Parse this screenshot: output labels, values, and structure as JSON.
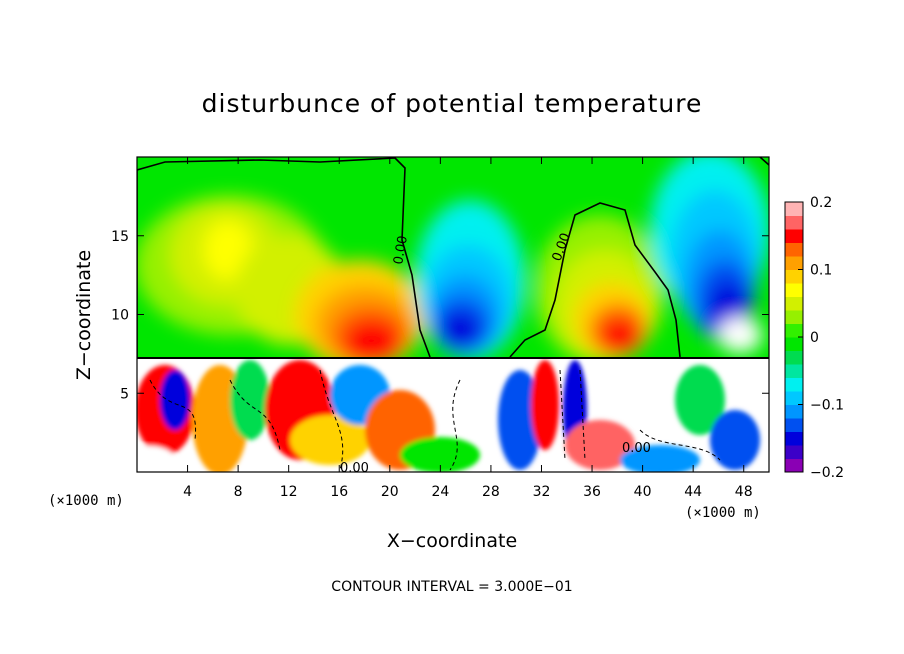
{
  "chart_data": {
    "type": "heatmap",
    "title": "disturbunce of potential temperature",
    "xlabel": "X−coordinate",
    "ylabel": "Z−coordinate",
    "x_unit": "(×1000 m)",
    "y_unit": "(×1000 m)",
    "xlim": [
      0,
      50
    ],
    "ylim": [
      0,
      20
    ],
    "x_ticks": [
      4,
      8,
      12,
      16,
      20,
      24,
      28,
      32,
      36,
      40,
      44,
      48
    ],
    "y_ticks": [
      5,
      10,
      15
    ],
    "contour_labels": [
      "0.00",
      "0.00",
      "0.00",
      "0.00"
    ],
    "contour_interval_text": "CONTOUR INTERVAL = 3.000E−01",
    "colorbar": {
      "min": -0.2,
      "max": 0.2,
      "ticks": [
        0.2,
        0.1,
        0,
        -0.1,
        -0.2
      ],
      "tick_labels": [
        "0.2",
        "0.1",
        "0",
        "−0.1",
        "−0.2"
      ],
      "colors": [
        "#8a00b4",
        "#3c00c8",
        "#0000dc",
        "#0050f0",
        "#0096ff",
        "#00c8ff",
        "#00f0f0",
        "#00e6a0",
        "#00dc50",
        "#00e600",
        "#32f000",
        "#96f000",
        "#d2f000",
        "#ffff00",
        "#ffd200",
        "#ffa000",
        "#ff6400",
        "#ff0000",
        "#ff6464",
        "#ffb4b4"
      ]
    },
    "upper_region_features": [
      {
        "x": 10,
        "z": 14.5,
        "value": 0.09
      },
      {
        "x": 19,
        "z": 10.2,
        "value": 0.17
      },
      {
        "x": 4,
        "z": 14,
        "value": 0.06
      },
      {
        "x": 26,
        "z": 10.5,
        "value": -0.17
      },
      {
        "x": 25,
        "z": 16,
        "value": -0.07
      },
      {
        "x": 37,
        "z": 10.5,
        "value": 0.16
      },
      {
        "x": 36,
        "z": 15,
        "value": 0.07
      },
      {
        "x": 46,
        "z": 12,
        "value": -0.18
      },
      {
        "x": 46,
        "z": 17,
        "value": -0.06
      },
      {
        "x": 49,
        "z": 9.5,
        "value": 0.2
      }
    ]
  }
}
